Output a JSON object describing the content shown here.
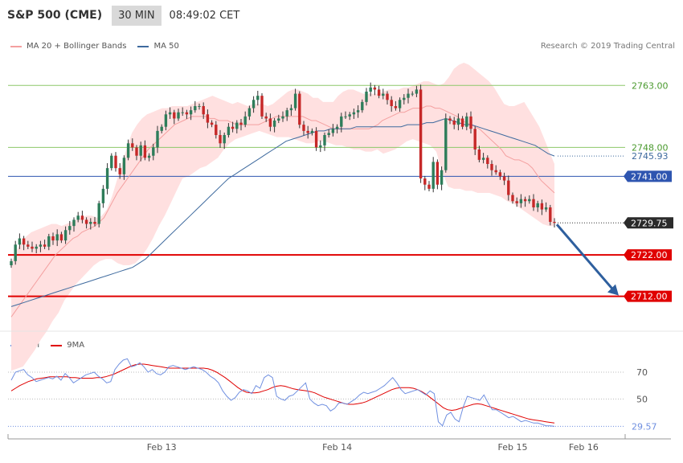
{
  "header": {
    "symbol": "S&P 500 (CME)",
    "timeframe": "30 MIN",
    "time": "08:49:02 CET"
  },
  "legend_main": [
    {
      "label": "MA 20 + Bollinger Bands",
      "color": "#f4a0a0"
    },
    {
      "label": "MA 50",
      "color": "#3e6a9e"
    }
  ],
  "copyright": "Research © 2019 Trading Central",
  "legend_rsi": [
    {
      "label": "RSI",
      "color": "#6f8fe0"
    },
    {
      "label": "9MA",
      "color": "#e00000"
    }
  ],
  "colors": {
    "bull": "#2e7d5a",
    "bear": "#c62828",
    "support": "#e00000",
    "resistance": "#8dc86a",
    "pivot": "#2e55b0",
    "arrow": "#2e5f9e",
    "band_fill": "#ffe0e0"
  },
  "chart_data": {
    "type": "candlestick",
    "ylim": [
      2702,
      2772
    ],
    "levels": [
      {
        "value": 2763.0,
        "label": "2763.00",
        "kind": "resistance"
      },
      {
        "value": 2748.0,
        "label": "2748.00",
        "kind": "resistance"
      },
      {
        "value": 2741.0,
        "label": "2741.00",
        "kind": "pivot"
      },
      {
        "value": 2722.0,
        "label": "2722.00",
        "kind": "support"
      },
      {
        "value": 2712.0,
        "label": "2712.00",
        "kind": "support"
      }
    ],
    "last_price": {
      "value": 2729.75,
      "label": "2729.75"
    },
    "ma50_last": {
      "value": 2745.93,
      "label": "2745.93"
    },
    "x_labels": [
      "Feb 13",
      "Feb 14",
      "Feb 15",
      "Feb 16"
    ],
    "x_label_index": [
      36,
      78,
      120,
      137
    ],
    "closes": [
      2720.5,
      2724.5,
      2726.0,
      2724.5,
      2724.0,
      2723.5,
      2724.0,
      2724.5,
      2724.0,
      2726.5,
      2725.5,
      2727.0,
      2725.5,
      2728.0,
      2729.0,
      2730.5,
      2731.5,
      2730.5,
      2729.5,
      2730.0,
      2729.5,
      2734.5,
      2738.0,
      2743.0,
      2746.0,
      2743.0,
      2741.5,
      2745.5,
      2749.0,
      2748.0,
      2746.0,
      2748.5,
      2745.5,
      2746.0,
      2748.0,
      2752.0,
      2753.0,
      2756.0,
      2756.5,
      2755.0,
      2756.5,
      2756.5,
      2756.0,
      2757.0,
      2758.0,
      2758.0,
      2756.0,
      2754.0,
      2753.5,
      2751.0,
      2749.0,
      2751.0,
      2753.0,
      2752.5,
      2754.0,
      2753.5,
      2755.5,
      2757.5,
      2759.5,
      2760.5,
      2755.5,
      2755.0,
      2753.0,
      2754.5,
      2755.0,
      2755.5,
      2757.0,
      2757.5,
      2761.0,
      2753.5,
      2752.0,
      2751.5,
      2752.0,
      2748.0,
      2748.5,
      2751.0,
      2751.5,
      2752.5,
      2753.0,
      2755.5,
      2755.5,
      2756.0,
      2756.5,
      2757.0,
      2759.0,
      2761.5,
      2762.5,
      2762.0,
      2760.5,
      2761.0,
      2759.5,
      2758.0,
      2757.5,
      2759.5,
      2760.0,
      2761.0,
      2761.0,
      2762.0,
      2740.5,
      2739.0,
      2738.0,
      2744.5,
      2739.0,
      2742.5,
      2755.0,
      2754.5,
      2753.5,
      2755.0,
      2753.0,
      2755.5,
      2752.5,
      2747.5,
      2745.0,
      2745.5,
      2744.0,
      2742.5,
      2742.0,
      2741.0,
      2740.0,
      2736.5,
      2735.0,
      2734.5,
      2735.5,
      2735.0,
      2735.5,
      2733.5,
      2734.5,
      2733.0,
      2733.5,
      2730.0,
      2729.75
    ],
    "ma20": [
      2707.0,
      2708.5,
      2710.0,
      2711.5,
      2713.0,
      2714.5,
      2716.0,
      2717.5,
      2719.0,
      2720.5,
      2722.0,
      2723.0,
      2724.0,
      2725.0,
      2726.0,
      2726.5,
      2727.5,
      2728.0,
      2728.5,
      2729.0,
      2730.0,
      2731.0,
      2733.0,
      2735.0,
      2737.0,
      2738.5,
      2740.0,
      2741.5,
      2743.0,
      2744.5,
      2746.0,
      2747.5,
      2748.5,
      2749.5,
      2750.5,
      2751.5,
      2752.5,
      2753.5,
      2754.0,
      2754.5,
      2755.0,
      2755.5,
      2755.5,
      2755.5,
      2755.5,
      2755.0,
      2755.0,
      2754.5,
      2754.5,
      2754.5,
      2754.0,
      2753.5,
      2753.5,
      2753.5,
      2753.5,
      2753.5,
      2753.5,
      2754.0,
      2754.5,
      2755.0,
      2755.5,
      2755.5,
      2755.5,
      2755.5,
      2755.5,
      2755.5,
      2755.5,
      2755.0,
      2754.5,
      2754.5,
      2754.0,
      2753.5,
      2753.0,
      2752.5,
      2752.5,
      2752.5,
      2752.5,
      2752.5,
      2752.5,
      2752.5,
      2752.5,
      2752.5,
      2753.0,
      2753.5,
      2754.5,
      2755.0,
      2755.5,
      2756.0,
      2756.5,
      2756.5,
      2757.0,
      2757.5,
      2757.5,
      2757.5,
      2758.0,
      2758.0,
      2757.5,
      2757.5,
      2757.0,
      2756.5,
      2756.0,
      2755.5,
      2754.5,
      2754.0,
      2753.5,
      2753.0,
      2752.5,
      2751.5,
      2750.5,
      2749.5,
      2748.5,
      2747.5,
      2746.0,
      2745.5,
      2745.0,
      2745.0,
      2744.5,
      2744.0,
      2743.0,
      2741.5,
      2740.0,
      2739.0,
      2738.0,
      2737.0
    ],
    "bb_upper": [
      2720.0,
      2723.0,
      2725.0,
      2726.5,
      2727.5,
      2728.0,
      2728.5,
      2729.0,
      2729.5,
      2729.5,
      2729.0,
      2729.5,
      2730.0,
      2730.5,
      2731.0,
      2731.5,
      2731.5,
      2731.0,
      2731.5,
      2733.0,
      2736.0,
      2740.0,
      2744.0,
      2748.0,
      2751.5,
      2753.5,
      2755.0,
      2756.0,
      2756.5,
      2757.0,
      2757.5,
      2757.5,
      2758.0,
      2758.0,
      2758.0,
      2758.0,
      2758.5,
      2759.0,
      2759.5,
      2760.0,
      2760.5,
      2760.0,
      2759.5,
      2759.0,
      2758.5,
      2759.0,
      2758.5,
      2758.0,
      2758.5,
      2758.5,
      2758.5,
      2758.0,
      2758.5,
      2759.5,
      2760.5,
      2761.5,
      2762.0,
      2762.0,
      2761.5,
      2761.0,
      2760.0,
      2760.0,
      2759.0,
      2759.0,
      2759.0,
      2760.5,
      2761.5,
      2762.0,
      2762.0,
      2761.5,
      2761.0,
      2761.0,
      2761.0,
      2761.0,
      2761.5,
      2762.0,
      2762.0,
      2762.0,
      2762.5,
      2762.5,
      2763.0,
      2763.5,
      2764.0,
      2764.0,
      2763.5,
      2763.0,
      2763.5,
      2765.0,
      2767.0,
      2768.0,
      2768.5,
      2768.0,
      2767.0,
      2766.0,
      2765.0,
      2764.0,
      2762.5,
      2760.5,
      2758.5,
      2758.0,
      2758.0,
      2758.5,
      2759.0,
      2757.0,
      2755.0,
      2753.0,
      2750.0,
      2747.0,
      2744.0
    ],
    "bb_lower": [
      2694.0,
      2694.5,
      2695.0,
      2697.0,
      2699.0,
      2701.5,
      2703.5,
      2706.0,
      2708.0,
      2711.0,
      2713.0,
      2715.0,
      2716.5,
      2718.0,
      2719.5,
      2720.5,
      2721.0,
      2721.0,
      2720.0,
      2719.5,
      2719.5,
      2720.0,
      2721.5,
      2723.5,
      2726.0,
      2729.0,
      2731.5,
      2734.5,
      2737.5,
      2740.5,
      2741.0,
      2742.0,
      2743.0,
      2743.5,
      2744.5,
      2745.5,
      2747.5,
      2749.0,
      2750.0,
      2750.5,
      2751.0,
      2751.5,
      2752.0,
      2751.5,
      2751.0,
      2750.5,
      2750.5,
      2750.5,
      2750.0,
      2749.5,
      2749.0,
      2749.0,
      2749.5,
      2749.5,
      2749.0,
      2748.5,
      2748.5,
      2748.0,
      2747.5,
      2747.5,
      2747.0,
      2747.0,
      2747.5,
      2746.5,
      2747.0,
      2747.5,
      2748.5,
      2749.5,
      2750.0,
      2749.5,
      2749.0,
      2748.5,
      2747.0,
      2742.0,
      2738.5,
      2738.0,
      2738.0,
      2737.5,
      2737.5,
      2737.0,
      2737.0,
      2737.0,
      2736.5,
      2736.0,
      2735.0,
      2734.5,
      2733.5,
      2732.5,
      2731.5,
      2730.5,
      2729.5,
      2729.0,
      2729.0
    ],
    "ma50": [
      2709.5,
      2710.0,
      2710.5,
      2711.0,
      2711.5,
      2712.0,
      2712.5,
      2713.0,
      2713.5,
      2714.0,
      2714.5,
      2715.0,
      2715.5,
      2716.0,
      2716.5,
      2717.0,
      2717.5,
      2718.0,
      2718.5,
      2719.0,
      2720.0,
      2721.0,
      2722.5,
      2724.0,
      2725.5,
      2727.0,
      2728.5,
      2730.0,
      2731.5,
      2733.0,
      2734.5,
      2736.0,
      2737.5,
      2739.0,
      2740.5,
      2741.5,
      2742.5,
      2743.5,
      2744.5,
      2745.5,
      2746.5,
      2747.5,
      2748.5,
      2749.5,
      2750.0,
      2750.5,
      2751.0,
      2751.5,
      2752.0,
      2752.0,
      2752.5,
      2752.5,
      2752.5,
      2752.5,
      2753.0,
      2753.0,
      2753.0,
      2753.0,
      2753.0,
      2753.0,
      2753.0,
      2753.0,
      2753.5,
      2753.5,
      2753.5,
      2754.0,
      2754.0,
      2754.5,
      2755.0,
      2754.5,
      2754.0,
      2753.5,
      2753.5,
      2753.0,
      2752.5,
      2752.0,
      2751.5,
      2751.0,
      2750.5,
      2750.0,
      2749.5,
      2749.0,
      2748.5,
      2747.5,
      2746.5,
      2745.93
    ],
    "rsi_ylim": [
      25,
      85
    ],
    "rsi_levels": [
      {
        "value": 70,
        "label": "70"
      },
      {
        "value": 50,
        "label": "50"
      }
    ],
    "rsi_last": {
      "value": 29.57,
      "label": "29.57"
    },
    "rsi": [
      64,
      70,
      71,
      72,
      68,
      66,
      63,
      64,
      65,
      66,
      65,
      67,
      64,
      69,
      66,
      62,
      64,
      66,
      68,
      69,
      70,
      67,
      65,
      62,
      63,
      72,
      76,
      79,
      80,
      74,
      75,
      77,
      74,
      70,
      72,
      69,
      68,
      70,
      74,
      75,
      74,
      73,
      72,
      73,
      74,
      73,
      72,
      70,
      67,
      65,
      62,
      56,
      52,
      49,
      51,
      55,
      57,
      56,
      54,
      60,
      58,
      66,
      68,
      66,
      52,
      50,
      49,
      52,
      53,
      56,
      59,
      62,
      50,
      47,
      45,
      46,
      45,
      41,
      43,
      47,
      47,
      46,
      48,
      50,
      53,
      55,
      54,
      55,
      56,
      58,
      60,
      63,
      66,
      62,
      57,
      54,
      55,
      56,
      57,
      55,
      53,
      56,
      54,
      33,
      30,
      38,
      40,
      35,
      33,
      44,
      52,
      51,
      50,
      49,
      53,
      47,
      42,
      42,
      40,
      38,
      36,
      37,
      35,
      33,
      34,
      33,
      32,
      32,
      31,
      30,
      30,
      29.57
    ],
    "rsi_ma": [
      56,
      58,
      60,
      61.5,
      63,
      64,
      65,
      65.5,
      66,
      66.5,
      66.5,
      66.5,
      66.5,
      66.5,
      66,
      66,
      65.5,
      65.5,
      65.5,
      65.5,
      66,
      66,
      66.5,
      67.5,
      68.5,
      70,
      71.5,
      73,
      74.5,
      75.5,
      76,
      76,
      75.5,
      75,
      74.5,
      74,
      73.5,
      73,
      73,
      73,
      73,
      73,
      73,
      73,
      73,
      73,
      72.5,
      71.5,
      70,
      68,
      66,
      63.5,
      61,
      58.5,
      56.5,
      55,
      54.5,
      54.5,
      55,
      56,
      57,
      58.5,
      59.5,
      60,
      59.5,
      58.5,
      57.5,
      57,
      56.5,
      56,
      55.5,
      54.5,
      53,
      51.5,
      50.5,
      49.5,
      48.5,
      47.5,
      46.5,
      46,
      46,
      46.5,
      47,
      48,
      49.5,
      51,
      52.5,
      54,
      55.5,
      57,
      58,
      58.5,
      58.5,
      58.5,
      58,
      57,
      55.5,
      53.5,
      51,
      48.5,
      46,
      43.5,
      42,
      41.5,
      42,
      43,
      44,
      45,
      46,
      46.5,
      46,
      45,
      44,
      43,
      42,
      41,
      40,
      39,
      38,
      37,
      36,
      35,
      34.5,
      34,
      33.5,
      33,
      32.5,
      32
    ]
  }
}
